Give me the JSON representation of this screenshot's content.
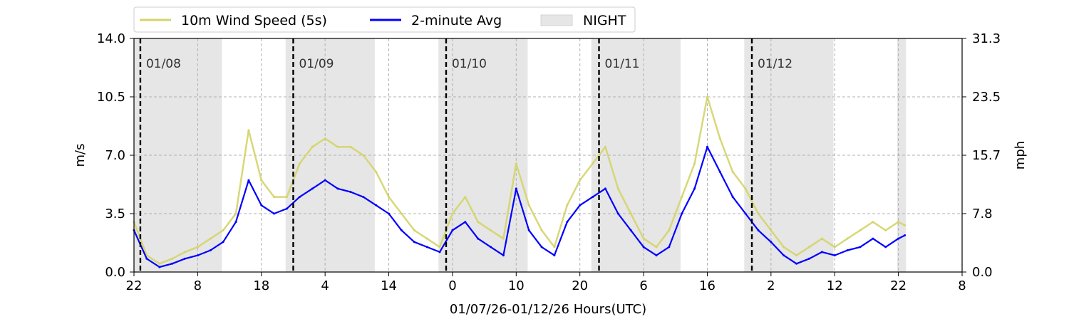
{
  "chart_data": {
    "type": "line",
    "title": "",
    "xlabel": "01/07/26-01/12/26  Hours(UTC)",
    "ylabel_left": "m/s",
    "ylabel_right": "mph",
    "x_unit": "hours since 01/07/26 22:00 UTC",
    "xlim": [
      0,
      130
    ],
    "ylim": [
      0,
      14
    ],
    "x_ticks": [
      0,
      10,
      20,
      30,
      40,
      50,
      60,
      70,
      80,
      90,
      100,
      110,
      120,
      130
    ],
    "x_tick_labels": [
      "22",
      "8",
      "18",
      "4",
      "14",
      "0",
      "10",
      "20",
      "6",
      "16",
      "2",
      "12",
      "22",
      "8"
    ],
    "y_ticks": [
      0,
      3.5,
      7,
      10.5,
      14
    ],
    "y_tick_labels": [
      "0.0",
      "3.5",
      "7.0",
      "10.5",
      "14.0"
    ],
    "y2_tick_labels": [
      "0.0",
      "7.8",
      "15.7",
      "23.5",
      "31.3"
    ],
    "grid": true,
    "legend_position": "top-left",
    "legend": [
      "10m Wind Speed (5s)",
      "2-minute Avg",
      "NIGHT"
    ],
    "night_periods": [
      [
        0,
        13.8
      ],
      [
        23.8,
        37.8
      ],
      [
        47.8,
        61.8
      ],
      [
        71.8,
        85.8
      ],
      [
        95.8,
        109.8
      ],
      [
        119.8,
        121.2
      ]
    ],
    "day_markers": [
      {
        "x": 1,
        "label": "01/08"
      },
      {
        "x": 25,
        "label": "01/09"
      },
      {
        "x": 49,
        "label": "01/10"
      },
      {
        "x": 73,
        "label": "01/11"
      },
      {
        "x": 97,
        "label": "01/12"
      }
    ],
    "series": [
      {
        "name": "10m Wind Speed (5s)",
        "color": "#d4d46a",
        "x": [
          0,
          2,
          4,
          6,
          8,
          10,
          12,
          14,
          16,
          18,
          20,
          22,
          24,
          26,
          28,
          30,
          32,
          34,
          36,
          38,
          40,
          42,
          44,
          46,
          48,
          50,
          52,
          54,
          56,
          58,
          60,
          62,
          64,
          66,
          68,
          70,
          72,
          74,
          76,
          78,
          80,
          82,
          84,
          86,
          88,
          90,
          92,
          94,
          96,
          98,
          100,
          102,
          104,
          106,
          108,
          110,
          112,
          114,
          116,
          118,
          120,
          121
        ],
        "y": [
          3.0,
          1.0,
          0.5,
          0.8,
          1.2,
          1.5,
          2.0,
          2.5,
          3.5,
          8.5,
          5.5,
          4.5,
          4.5,
          6.5,
          7.5,
          8.0,
          7.5,
          7.5,
          7.0,
          6.0,
          4.5,
          3.5,
          2.5,
          2.0,
          1.5,
          3.5,
          4.5,
          3.0,
          2.5,
          2.0,
          6.5,
          4.0,
          2.5,
          1.5,
          4.0,
          5.5,
          6.5,
          7.5,
          5.0,
          3.5,
          2.0,
          1.5,
          2.5,
          4.5,
          6.5,
          10.5,
          8.0,
          6.0,
          5.0,
          3.5,
          2.5,
          1.5,
          1.0,
          1.5,
          2.0,
          1.5,
          2.0,
          2.5,
          3.0,
          2.5,
          3.0,
          2.8
        ]
      },
      {
        "name": "2-minute Avg",
        "color": "#0000ff",
        "x": [
          0,
          2,
          4,
          6,
          8,
          10,
          12,
          14,
          16,
          18,
          20,
          22,
          24,
          26,
          28,
          30,
          32,
          34,
          36,
          38,
          40,
          42,
          44,
          46,
          48,
          50,
          52,
          54,
          56,
          58,
          60,
          62,
          64,
          66,
          68,
          70,
          72,
          74,
          76,
          78,
          80,
          82,
          84,
          86,
          88,
          90,
          92,
          94,
          96,
          98,
          100,
          102,
          104,
          106,
          108,
          110,
          112,
          114,
          116,
          118,
          120,
          121
        ],
        "y": [
          2.5,
          0.8,
          0.3,
          0.5,
          0.8,
          1.0,
          1.3,
          1.8,
          3.0,
          5.5,
          4.0,
          3.5,
          3.8,
          4.5,
          5.0,
          5.5,
          5.0,
          4.8,
          4.5,
          4.0,
          3.5,
          2.5,
          1.8,
          1.5,
          1.2,
          2.5,
          3.0,
          2.0,
          1.5,
          1.0,
          5.0,
          2.5,
          1.5,
          1.0,
          3.0,
          4.0,
          4.5,
          5.0,
          3.5,
          2.5,
          1.5,
          1.0,
          1.5,
          3.5,
          5.0,
          7.5,
          6.0,
          4.5,
          3.5,
          2.5,
          1.8,
          1.0,
          0.5,
          0.8,
          1.2,
          1.0,
          1.3,
          1.5,
          2.0,
          1.5,
          2.0,
          2.2
        ]
      }
    ]
  }
}
